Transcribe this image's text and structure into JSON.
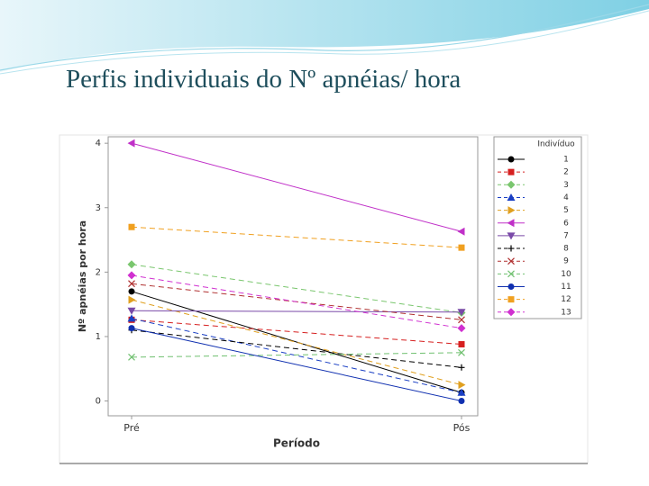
{
  "title": "Perfis individuais do Nº apnéias/ hora",
  "chart_data": {
    "type": "line",
    "x_label": "Período",
    "y_label": "Nº apnéias por hora",
    "legend_title": "Indivíduo",
    "legend": "right",
    "categories": [
      "Pré",
      "Pós"
    ],
    "ylim": [
      -0.23,
      4.1
    ],
    "yticks": [
      0,
      1,
      2,
      3,
      4
    ],
    "series": [
      {
        "name": "1",
        "color": "#000000",
        "marker": "circle",
        "dashed": false,
        "values": [
          1.7,
          0.13
        ]
      },
      {
        "name": "2",
        "color": "#d62020",
        "marker": "square",
        "dashed": true,
        "values": [
          1.26,
          0.88
        ]
      },
      {
        "name": "3",
        "color": "#7ac66e",
        "marker": "diamond",
        "dashed": true,
        "values": [
          2.12,
          1.37
        ]
      },
      {
        "name": "4",
        "color": "#1a3fc4",
        "marker": "triangle-up",
        "dashed": true,
        "values": [
          1.28,
          0.13
        ]
      },
      {
        "name": "5",
        "color": "#e0a020",
        "marker": "triangle-right",
        "dashed": true,
        "values": [
          1.57,
          0.25
        ]
      },
      {
        "name": "6",
        "color": "#c030c8",
        "marker": "triangle-left",
        "dashed": false,
        "values": [
          4.0,
          2.63
        ]
      },
      {
        "name": "7",
        "color": "#7a4aa8",
        "marker": "triangle-down",
        "dashed": false,
        "values": [
          1.4,
          1.38
        ]
      },
      {
        "name": "8",
        "color": "#000000",
        "marker": "plus",
        "dashed": true,
        "values": [
          1.1,
          0.52
        ]
      },
      {
        "name": "9",
        "color": "#b03030",
        "marker": "x",
        "dashed": true,
        "values": [
          1.82,
          1.26
        ]
      },
      {
        "name": "10",
        "color": "#70c070",
        "marker": "x",
        "dashed": true,
        "values": [
          0.68,
          0.75
        ]
      },
      {
        "name": "11",
        "color": "#1030b0",
        "marker": "circle",
        "dashed": false,
        "values": [
          1.13,
          0.0
        ]
      },
      {
        "name": "12",
        "color": "#f0a020",
        "marker": "square",
        "dashed": true,
        "values": [
          2.7,
          2.38
        ]
      },
      {
        "name": "13",
        "color": "#d030d0",
        "marker": "diamond",
        "dashed": true,
        "values": [
          1.95,
          1.13
        ]
      }
    ]
  }
}
